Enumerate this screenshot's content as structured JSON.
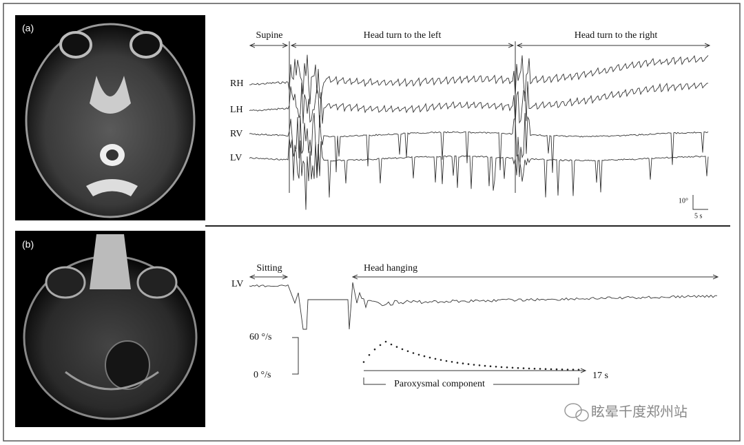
{
  "panel_a": {
    "label": "(a)",
    "phases": [
      "Supine",
      "Head turn to the left",
      "Head turn to the right"
    ],
    "channels": [
      "RH",
      "LH",
      "RV",
      "LV"
    ],
    "scale": {
      "amplitude": "10°",
      "time": "5 s"
    }
  },
  "panel_b": {
    "label": "(b)",
    "phases": [
      "Sitting",
      "Head hanging"
    ],
    "channel": "LV",
    "velocity_axis": [
      "60 °/s",
      "0 °/s"
    ],
    "duration": "17 s",
    "component": "Paroxysmal component"
  },
  "watermark": "眩晕千度郑州站"
}
